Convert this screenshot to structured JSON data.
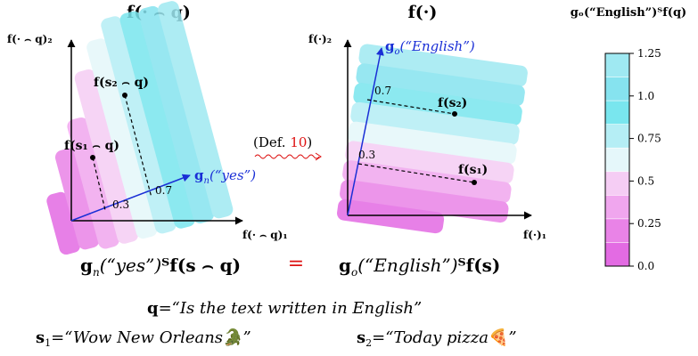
{
  "left_panel": {
    "title": "f(· ⌢ q)",
    "y_axis_label": "f(· ⌢ q)₂",
    "x_axis_label": "f(· ⌢ q)₁",
    "point_s2_label": "f(s₂ ⌢ q)",
    "point_s1_label": "f(s₁ ⌢ q)",
    "vector_label_prefix": "g",
    "vector_label_sub": "n",
    "vector_label_arg": "(“yes”)",
    "proj_s1_value": "0.3",
    "proj_s2_value": "0.7"
  },
  "right_panel": {
    "title": "f(·)",
    "y_axis_label": "f(·)₂",
    "x_axis_label": "f(·)₁",
    "point_s2_label": "f(s₂)",
    "point_s1_label": "f(s₁)",
    "vector_label_prefix": "g",
    "vector_label_sub": "o",
    "vector_label_arg": "(“English”)",
    "proj_s1_value": "0.3",
    "proj_s2_value": "0.7"
  },
  "middle_ref": {
    "prefix": "(Def. ",
    "ref_number": "10",
    "suffix": ")"
  },
  "colorbar": {
    "title": "gₒ(“English”)ᵀf(q)",
    "ticks": [
      "1.25",
      "1.0",
      "0.75",
      "0.5",
      "0.25",
      "0.0"
    ],
    "tick_values": [
      1.25,
      1.0,
      0.75,
      0.5,
      0.25,
      0.0
    ],
    "colors": [
      "#9fe9f2",
      "#86e3ef",
      "#79e6ee",
      "#b5eef5",
      "#e5f7fa",
      "#f5cdf4",
      "#f0a6ee",
      "#e983e7",
      "#e36be3"
    ]
  },
  "equation": {
    "left_g": "g",
    "left_sub": "n",
    "left_arg": "(“yes”)",
    "left_rest": "ᵀf(s ⌢ q)",
    "equals": "=",
    "right_g": "g",
    "right_sub": "o",
    "right_arg": "(“English”)",
    "right_rest": "ᵀf(s)"
  },
  "definitions": {
    "q_symbol": "q",
    "q_text": "=“Is the text written in English”",
    "s1_symbol": "s",
    "s1_sub": "1",
    "s1_text": "=“Wow New Orleans",
    "s1_emoji": "🐊",
    "s1_close": "”",
    "s2_symbol": "s",
    "s2_sub": "2",
    "s2_text": "=“Today pizza",
    "s2_emoji": "🍕",
    "s2_close": "”"
  }
}
